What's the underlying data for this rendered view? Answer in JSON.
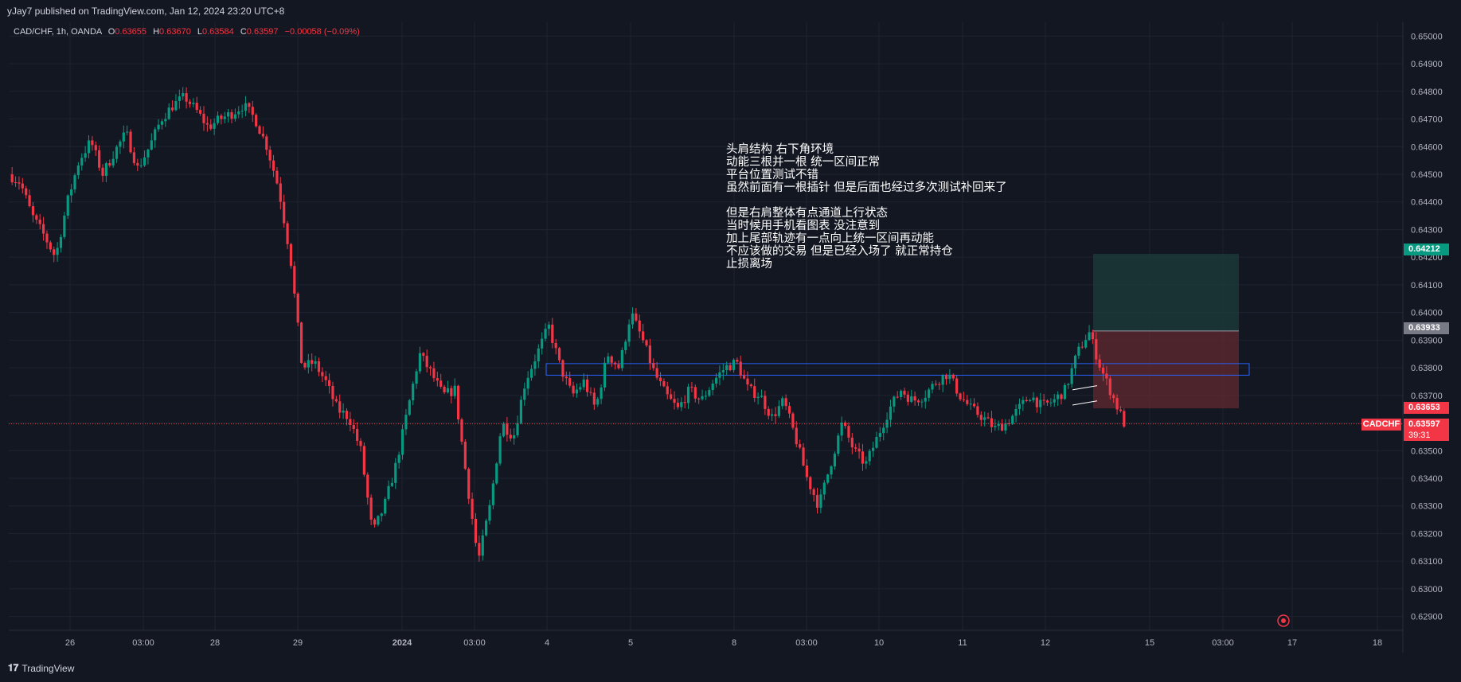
{
  "header": {
    "published": "yJay7 published on TradingView.com, Jan 12, 2024 23:20 UTC+8"
  },
  "footer": {
    "brand": "TradingView"
  },
  "legend": {
    "symbol": "CAD/CHF, 1h, OANDA",
    "o_key": "O",
    "o_val": "0.63655",
    "h_key": "H",
    "h_val": "0.63670",
    "l_key": "L",
    "l_val": "0.63584",
    "c_key": "C",
    "c_val": "0.63597",
    "change": "−0.00058 (−0.09%)"
  },
  "annotation": {
    "lines": [
      "头肩结构 右下角环境",
      "动能三根并一根 统一区间正常",
      "平台位置测试不错",
      "虽然前面有一根插针 但是后面也经过多次测试补回来了",
      "",
      "但是右肩整体有点通道上行状态",
      "当时候用手机看图表 没注意到",
      "加上尾部轨迹有一点向上统一区间再动能",
      "不应该做的交易 但是已经入场了 就正常持仓",
      "止损离场"
    ]
  },
  "price_labels": {
    "target": "0.64212",
    "entry": "0.63933",
    "stop": "0.63653",
    "last": "0.63597",
    "symbol_tag": "CADCHF",
    "countdown": "39:31"
  },
  "colors": {
    "background": "#131722",
    "grid": "#1f2330",
    "up": "#089981",
    "down": "#f23645",
    "zone_line": "#2962ff",
    "profit_zone": "#1c3b3b",
    "loss_zone": "#5c2830"
  },
  "chart_data": {
    "type": "candlestick",
    "title": "CAD/CHF, 1h, OANDA",
    "ylim": [
      0.6285,
      0.6505
    ],
    "y_ticks": [
      "0.65000",
      "0.64900",
      "0.64800",
      "0.64700",
      "0.64600",
      "0.64500",
      "0.64400",
      "0.64300",
      "0.64200",
      "0.64100",
      "0.64000",
      "0.63900",
      "0.63800",
      "0.63700",
      "0.63600",
      "0.63500",
      "0.63400",
      "0.63300",
      "0.63200",
      "0.63100",
      "0.63000",
      "0.62900"
    ],
    "x_ticks": [
      "26",
      "03:00",
      "28",
      "29",
      "2024",
      "03:00",
      "4",
      "5",
      "8",
      "03:00",
      "10",
      "11",
      "12",
      "15",
      "03:00",
      "17",
      "18"
    ],
    "price_path": [
      0.645,
      0.6447,
      0.6435,
      0.6428,
      0.642,
      0.644,
      0.6455,
      0.6462,
      0.645,
      0.6458,
      0.6465,
      0.6452,
      0.646,
      0.647,
      0.6475,
      0.6478,
      0.6473,
      0.6467,
      0.647,
      0.6472,
      0.6475,
      0.647,
      0.646,
      0.6445,
      0.642,
      0.638,
      0.6382,
      0.6375,
      0.6365,
      0.6362,
      0.635,
      0.632,
      0.633,
      0.6345,
      0.6365,
      0.6385,
      0.6378,
      0.637,
      0.6372,
      0.634,
      0.631,
      0.633,
      0.636,
      0.6355,
      0.6375,
      0.6385,
      0.6395,
      0.638,
      0.637,
      0.6375,
      0.6365,
      0.6385,
      0.638,
      0.64,
      0.639,
      0.6378,
      0.637,
      0.6365,
      0.6372,
      0.6368,
      0.6375,
      0.638,
      0.6382,
      0.6372,
      0.637,
      0.6362,
      0.6368,
      0.6355,
      0.634,
      0.633,
      0.6345,
      0.636,
      0.635,
      0.6345,
      0.6355,
      0.6365,
      0.6372,
      0.6368,
      0.637,
      0.6375,
      0.6378,
      0.637,
      0.6365,
      0.6362,
      0.6358,
      0.636,
      0.6365,
      0.637,
      0.6366,
      0.6368,
      0.6372,
      0.6385,
      0.6393,
      0.638,
      0.637,
      0.636
    ],
    "zones": {
      "horizontal_box": [
        0.63773,
        0.63815
      ],
      "position": {
        "target": 0.64212,
        "entry": 0.63933,
        "stop": 0.63653
      }
    }
  }
}
